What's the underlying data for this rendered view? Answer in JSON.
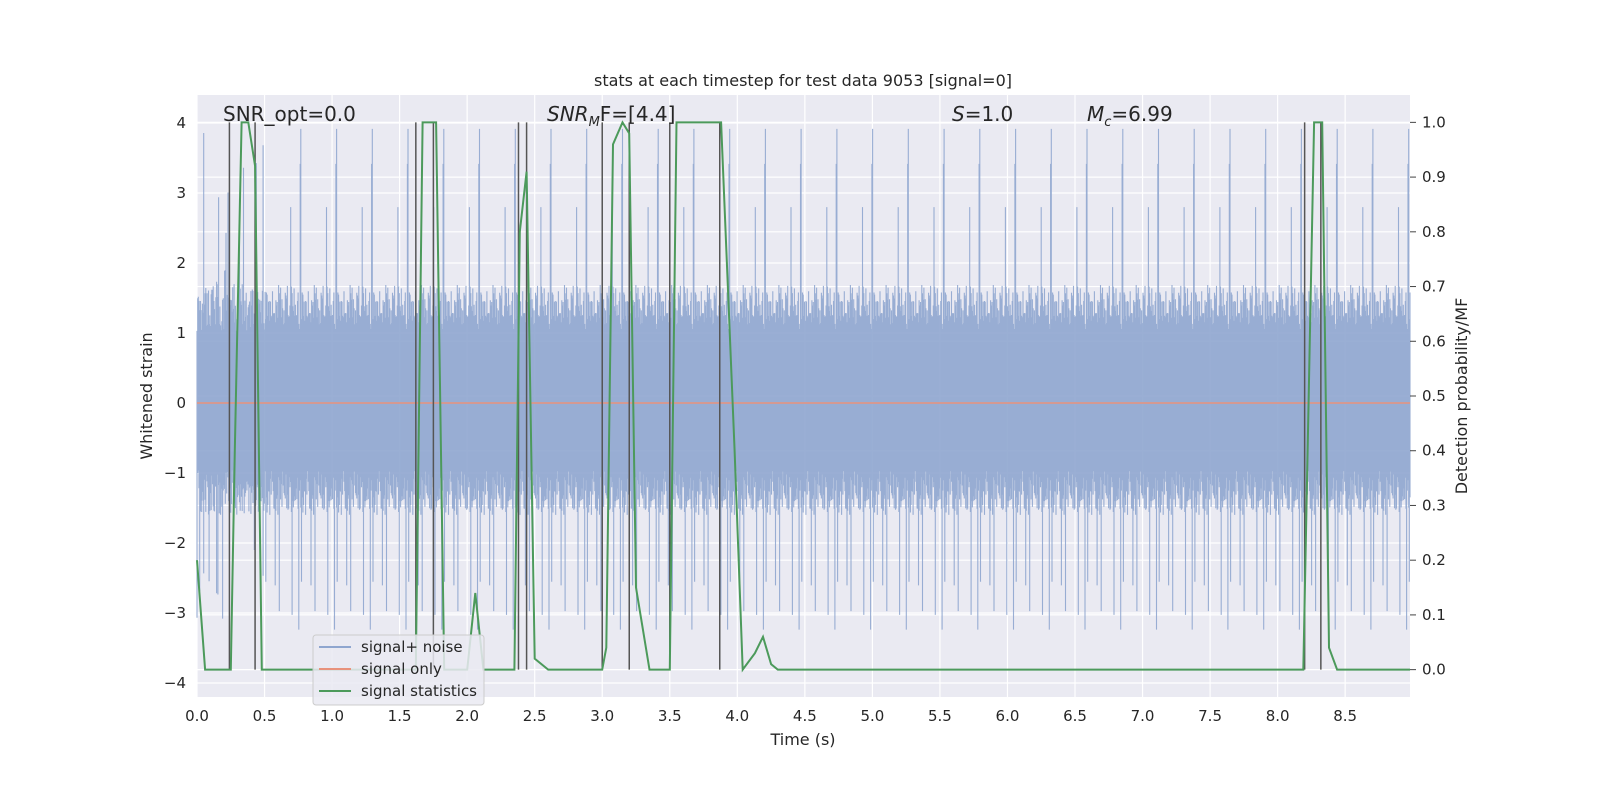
{
  "chart_data": {
    "type": "line",
    "title": "stats at each timestep for test data 9053 [signal=0]",
    "xlabel": "Time (s)",
    "ylabel_left": "Whitened strain",
    "ylabel_right": "Detection probability/MF",
    "xlim": [
      0.0,
      8.98
    ],
    "ylim_left": [
      -4.2,
      4.4
    ],
    "ylim_right": [
      -0.05,
      1.05
    ],
    "x_ticks": [
      "0.0",
      "0.5",
      "1.0",
      "1.5",
      "2.0",
      "2.5",
      "3.0",
      "3.5",
      "4.0",
      "4.5",
      "5.0",
      "5.5",
      "6.0",
      "6.5",
      "7.0",
      "7.5",
      "8.0",
      "8.5"
    ],
    "y_ticks_left": [
      "−4",
      "−3",
      "−2",
      "−1",
      "0",
      "1",
      "2",
      "3",
      "4"
    ],
    "y_ticks_right": [
      "0.0",
      "0.1",
      "0.2",
      "0.3",
      "0.4",
      "0.5",
      "0.6",
      "0.7",
      "0.8",
      "0.9",
      "1.0"
    ],
    "grid": true,
    "legend_position": "lower-left",
    "annotations": {
      "snr_opt": "SNR_opt=0.0",
      "snr_mf_base": "SNR",
      "snr_mf_sub": "M",
      "snr_mf_tail": "F=[4.4]",
      "s_label": "S",
      "s_value": "=1.0",
      "mc_base": "M",
      "mc_sub": "c",
      "mc_value": "=6.99"
    },
    "series": [
      {
        "name": "signal+ noise",
        "axis": "left",
        "color": "#8fa6cf",
        "description_range": [
          -3.5,
          4.0
        ],
        "envelope_typical": [
          -1.6,
          1.7
        ]
      },
      {
        "name": "signal only",
        "axis": "left",
        "color": "#e8927c",
        "values_constant": 0.0
      },
      {
        "name": "signal statistics",
        "axis": "right",
        "color": "#4c9a5b",
        "x": [
          0.0,
          0.06,
          0.25,
          0.28,
          0.33,
          0.38,
          0.43,
          0.48,
          0.6,
          1.0,
          1.5,
          1.62,
          1.67,
          1.77,
          1.83,
          2.0,
          2.06,
          2.12,
          2.25,
          2.35,
          2.39,
          2.44,
          2.5,
          2.6,
          3.0,
          3.03,
          3.08,
          3.15,
          3.2,
          3.25,
          3.35,
          3.5,
          3.55,
          3.6,
          3.88,
          3.98,
          4.04,
          4.13,
          4.19,
          4.25,
          4.3,
          4.5,
          5.0,
          6.0,
          7.0,
          8.0,
          8.19,
          8.27,
          8.33,
          8.38,
          8.44,
          8.6,
          8.98
        ],
        "values": [
          0.2,
          0.0,
          0.0,
          0.4,
          1.0,
          1.0,
          0.92,
          0.0,
          0.0,
          0.0,
          0.0,
          0.0,
          1.0,
          1.0,
          0.0,
          0.0,
          0.14,
          0.0,
          0.0,
          0.0,
          0.8,
          0.91,
          0.02,
          0.0,
          0.0,
          0.04,
          0.96,
          1.0,
          0.98,
          0.15,
          0.0,
          0.0,
          1.0,
          1.0,
          1.0,
          0.4,
          0.0,
          0.03,
          0.06,
          0.01,
          0.0,
          0.0,
          0.0,
          0.0,
          0.0,
          0.0,
          0.0,
          1.0,
          1.0,
          0.04,
          0.0,
          0.0,
          0.0
        ]
      }
    ],
    "vertical_markers": [
      0.24,
      0.43,
      1.62,
      1.75,
      2.38,
      2.44,
      3.0,
      3.2,
      3.5,
      3.87,
      8.2,
      8.32
    ]
  }
}
